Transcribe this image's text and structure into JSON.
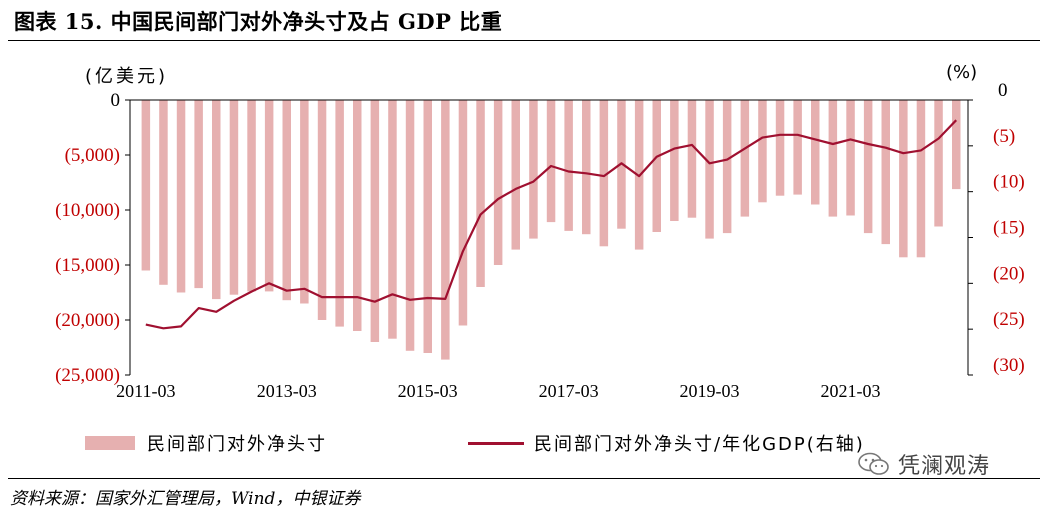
{
  "title": "图表 15.  中国民间部门对外净头寸及占 GDP 比重",
  "unit_left": "(亿美元)",
  "unit_right": "(%)",
  "legend": {
    "bar_label": "民间部门对外净头寸",
    "line_label": "民间部门对外净头寸/年化GDP(右轴)"
  },
  "source": "资料来源：国家外汇管理局，Wind，中银证券",
  "watermark": "凭澜观涛",
  "colors": {
    "bar": "#e6b0b0",
    "line": "#a01030",
    "neg_tick": "#c00000"
  },
  "chart_data": {
    "type": "bar+line",
    "y_left": {
      "min": -25000,
      "max": 0,
      "ticks": [
        "0",
        "(5,000)",
        "(10,000)",
        "(15,000)",
        "(20,000)",
        "(25,000)"
      ],
      "tick_values": [
        0,
        -5000,
        -10000,
        -15000,
        -20000,
        -25000
      ]
    },
    "y_right": {
      "min": -30,
      "max": 0,
      "ticks": [
        "0",
        "(5)",
        "(10)",
        "(15)",
        "(20)",
        "(25)",
        "(30)"
      ],
      "tick_values": [
        0,
        -5,
        -10,
        -15,
        -20,
        -25,
        -30
      ],
      "inverted_display": true
    },
    "x_tick_labels": [
      "2011-03",
      "2013-03",
      "2015-03",
      "2017-03",
      "2019-03",
      "2021-03"
    ],
    "x_tick_positions": [
      0,
      8,
      16,
      24,
      32,
      40
    ],
    "series": [
      {
        "name": "民间部门对外净头寸",
        "type": "bar",
        "axis": "left",
        "values": [
          -15500,
          -16800,
          -17500,
          -17100,
          -18100,
          -17700,
          -17400,
          -17400,
          -18200,
          -18500,
          -20000,
          -20600,
          -21000,
          -22000,
          -21700,
          -22800,
          -23000,
          -23600,
          -20500,
          -17000,
          -15000,
          -13600,
          -12600,
          -11100,
          -11900,
          -12200,
          -13300,
          -11700,
          -13600,
          -12000,
          -11000,
          -10700,
          -12600,
          -12100,
          -10600,
          -9300,
          -8700,
          -8600,
          -9500,
          -10600,
          -10500,
          -12100,
          -13100,
          -14300,
          -14300,
          -11500,
          -8100
        ]
      },
      {
        "name": "民间部门对外净头寸/年化GDP(右轴)",
        "type": "line",
        "axis": "right",
        "values": [
          -24.5,
          -24.9,
          -24.7,
          -22.7,
          -23.1,
          -21.9,
          -20.9,
          -20.0,
          -20.8,
          -20.6,
          -21.5,
          -21.5,
          -21.5,
          -22.0,
          -21.2,
          -21.8,
          -21.6,
          -21.7,
          -16.5,
          -12.5,
          -10.8,
          -9.7,
          -8.9,
          -7.2,
          -7.8,
          -8.0,
          -8.3,
          -6.9,
          -8.3,
          -6.2,
          -5.3,
          -4.9,
          -6.9,
          -6.5,
          -5.3,
          -4.1,
          -3.8,
          -3.8,
          -4.3,
          -4.8,
          -4.3,
          -4.8,
          -5.2,
          -5.8,
          -5.5,
          -4.2,
          -2.2
        ]
      }
    ]
  }
}
